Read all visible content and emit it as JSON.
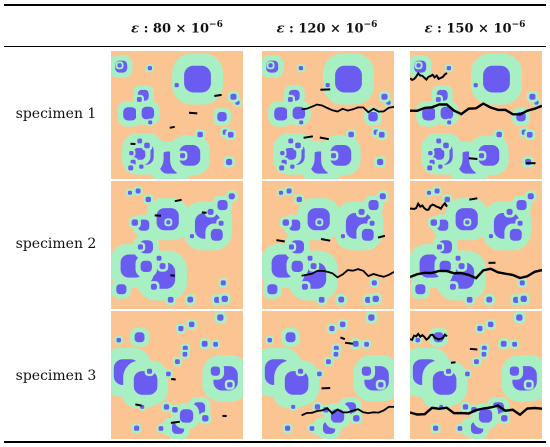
{
  "columns": [
    {
      "symbol": "ε",
      "label_rest": " : 80 × 10",
      "exponent": "−6"
    },
    {
      "symbol": "ε",
      "label_rest": " : 120 × 10",
      "exponent": "−6"
    },
    {
      "symbol": "ε",
      "label_rest": " : 150 × 10",
      "exponent": "−6"
    }
  ],
  "rows": [
    {
      "label": "specimen 1"
    },
    {
      "label": "specimen 2"
    },
    {
      "label": "specimen 3"
    }
  ],
  "colors": {
    "mortar": "#fbc593",
    "itz": "#a8f0c4",
    "aggregate": "#6a5cf0",
    "crack": "#000000"
  }
}
